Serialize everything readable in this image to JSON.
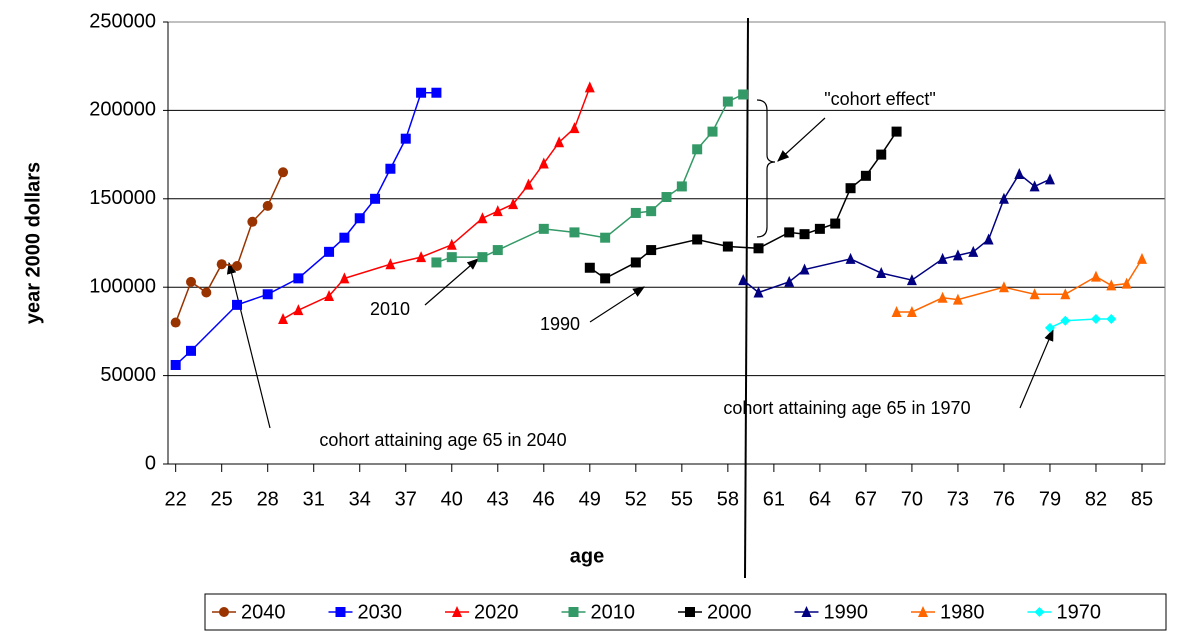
{
  "chart_data": {
    "type": "line",
    "x_label": "age",
    "y_label": "year 2000 dollars",
    "xlim": [
      21.5,
      86.5
    ],
    "xticks": [
      22,
      25,
      28,
      31,
      34,
      37,
      40,
      43,
      46,
      49,
      52,
      55,
      58,
      61,
      64,
      67,
      70,
      73,
      76,
      79,
      82,
      85
    ],
    "ylim": [
      0,
      250000
    ],
    "yticks": [
      0,
      50000,
      100000,
      150000,
      200000,
      250000
    ],
    "grid": true,
    "legend": "bottom",
    "annotations": [
      "\"cohort effect\"",
      "2010",
      "1990",
      "cohort attaining age 65 in 2040",
      "cohort attaining age 65 in 1970"
    ],
    "series": [
      {
        "name": "2040",
        "color": "#993300",
        "marker": "circle",
        "x": [
          22,
          23,
          24,
          25,
          26,
          27,
          28,
          29
        ],
        "values": [
          80000,
          103000,
          97000,
          113000,
          112000,
          137000,
          146000,
          165000
        ]
      },
      {
        "name": "2030",
        "color": "#0000ff",
        "marker": "square",
        "x": [
          22,
          23,
          26,
          28,
          30,
          32,
          33,
          34,
          35,
          36,
          37,
          38,
          39
        ],
        "values": [
          56000,
          64000,
          90000,
          96000,
          105000,
          120000,
          128000,
          139000,
          150000,
          167000,
          184000,
          210000,
          210000
        ]
      },
      {
        "name": "2020",
        "color": "#ff0000",
        "marker": "triangle",
        "x": [
          29,
          30,
          32,
          33,
          36,
          38,
          40,
          42,
          43,
          44,
          45,
          46,
          47,
          48,
          49
        ],
        "values": [
          82000,
          87000,
          95000,
          105000,
          113000,
          117000,
          124000,
          139000,
          143000,
          147000,
          158000,
          170000,
          182000,
          190000,
          213000
        ]
      },
      {
        "name": "2010",
        "color": "#339966",
        "marker": "square",
        "x": [
          39,
          40,
          42,
          43,
          46,
          48,
          50,
          52,
          53,
          54,
          55,
          56,
          57,
          58,
          59
        ],
        "values": [
          114000,
          117000,
          117000,
          121000,
          133000,
          131000,
          128000,
          142000,
          143000,
          151000,
          157000,
          178000,
          188000,
          205000,
          209000
        ]
      },
      {
        "name": "2000",
        "color": "#000000",
        "marker": "square",
        "x": [
          49,
          50,
          52,
          53,
          56,
          58,
          60,
          62,
          63,
          64,
          65,
          66,
          67,
          68,
          69
        ],
        "values": [
          111000,
          105000,
          114000,
          121000,
          127000,
          123000,
          122000,
          131000,
          130000,
          133000,
          136000,
          156000,
          163000,
          175000,
          188000
        ]
      },
      {
        "name": "1990",
        "color": "#000080",
        "marker": "triangle",
        "x": [
          59,
          60,
          62,
          63,
          66,
          68,
          70,
          72,
          73,
          74,
          75,
          76,
          77,
          78,
          79
        ],
        "values": [
          104000,
          97000,
          103000,
          110000,
          116000,
          108000,
          104000,
          116000,
          118000,
          120000,
          127000,
          150000,
          164000,
          157000,
          161000
        ]
      },
      {
        "name": "1980",
        "color": "#ff6600",
        "marker": "triangle",
        "x": [
          69,
          70,
          72,
          73,
          76,
          78,
          80,
          82,
          83,
          84,
          85
        ],
        "values": [
          86000,
          86000,
          94000,
          93000,
          100000,
          96000,
          96000,
          106000,
          101000,
          102000,
          116000
        ]
      },
      {
        "name": "1970",
        "color": "#00ffff",
        "marker": "diamond",
        "x": [
          79,
          80,
          82,
          83
        ],
        "values": [
          77000,
          81000,
          82000,
          82000
        ]
      }
    ]
  }
}
